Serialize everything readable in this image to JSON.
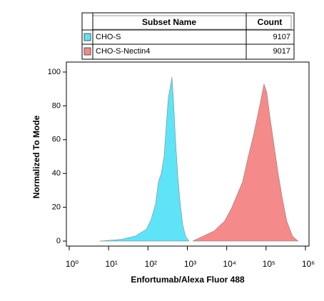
{
  "chart_data": {
    "type": "histogram-overlay",
    "legend_header": [
      "Subset Name",
      "Count"
    ],
    "xlabel": "Enfortumab/Alexa Fluor 488",
    "ylabel": "Normalized To Mode",
    "xscale": "log",
    "xlim": [
      1,
      1000000
    ],
    "ylim": [
      0,
      100
    ],
    "xticks": [
      {
        "value": 1,
        "label": "10⁰"
      },
      {
        "value": 10,
        "label": "10¹"
      },
      {
        "value": 100,
        "label": "10²"
      },
      {
        "value": 1000,
        "label": "10³"
      },
      {
        "value": 10000,
        "label": "10⁴"
      },
      {
        "value": 100000,
        "label": "10⁵"
      },
      {
        "value": 1000000,
        "label": "10⁶"
      }
    ],
    "yticks": [
      0,
      20,
      40,
      60,
      80,
      100
    ],
    "series": [
      {
        "name": "CHO-S",
        "count": 9107,
        "color": "#5fe3f7",
        "x": [
          6,
          21,
          48,
          91,
          121,
          156,
          184,
          217,
          257,
          291,
          330,
          374,
          406,
          442,
          500,
          567,
          643,
          759,
          897,
          1104
        ],
        "values": [
          0,
          1,
          3,
          7,
          13,
          22,
          35,
          40,
          50,
          68,
          85,
          92,
          97,
          85,
          60,
          40,
          25,
          10,
          3,
          0
        ]
      },
      {
        "name": "CHO-S-Nectin4",
        "count": 9017,
        "color": "#f48a8a",
        "x": [
          1361,
          2546,
          4761,
          8897,
          13500,
          18800,
          25200,
          35200,
          47200,
          58100,
          71600,
          88300,
          104000,
          123000,
          152000,
          203000,
          261000,
          335000,
          468000,
          653000
        ],
        "values": [
          0,
          3,
          6,
          12,
          20,
          28,
          35,
          50,
          62,
          72,
          82,
          93,
          88,
          75,
          60,
          40,
          25,
          12,
          3,
          0
        ]
      }
    ]
  }
}
